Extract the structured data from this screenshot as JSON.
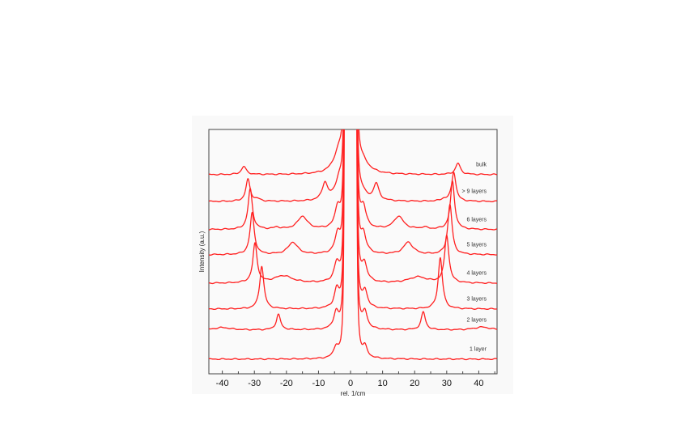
{
  "chart_data": {
    "type": "line",
    "title": "",
    "xlabel": "rel. 1/cm",
    "ylabel": "Intensity (a.u.)",
    "xlim": [
      -44.2,
      45.7
    ],
    "ylim": [
      0,
      100
    ],
    "xticks": [
      -40,
      -30,
      -20,
      -10,
      0,
      10,
      20,
      30,
      40
    ],
    "xtick_labels": [
      "-40",
      "-30",
      "-20",
      "-10",
      "0",
      "10",
      "20",
      "30",
      "40"
    ],
    "minor_xtick_step": 5,
    "grid": false,
    "legend": "none (series labelled at right)",
    "line_color": "#ff2020",
    "note_peak_format": "peaks as [center rel. 1/cm, height a.u., half-width rel. 1/cm], offset = vertical baseline a.u.",
    "series": [
      {
        "name": "1 layer",
        "offset": 6,
        "peaks": [
          [
            -4.5,
            4.3,
            0.9
          ],
          [
            4.5,
            4.3,
            0.9
          ]
        ]
      },
      {
        "name": "2 layers",
        "offset": 17.9,
        "peaks": [
          [
            -40,
            1,
            3
          ],
          [
            -22.5,
            6.3,
            0.8
          ],
          [
            -4.5,
            6.6,
            0.9
          ],
          [
            4.5,
            6.6,
            0.9
          ],
          [
            22.7,
            7.3,
            0.8
          ],
          [
            41,
            1.2,
            3
          ]
        ]
      },
      {
        "name": "3 layers",
        "offset": 26.5,
        "peaks": [
          [
            -27.7,
            17.5,
            0.8
          ],
          [
            -4.3,
            7.3,
            0.9
          ],
          [
            4.5,
            6.8,
            0.9
          ],
          [
            28,
            21,
            0.8
          ]
        ]
      },
      {
        "name": "4 layers",
        "offset": 37,
        "peaks": [
          [
            -29.8,
            16,
            0.8
          ],
          [
            -21,
            3,
            3.5
          ],
          [
            -4.3,
            7.3,
            1
          ],
          [
            4.3,
            7.3,
            1
          ],
          [
            21,
            2.5,
            3.5
          ],
          [
            30,
            19.5,
            0.8
          ]
        ]
      },
      {
        "name": "5 layers",
        "offset": 48.7,
        "peaks": [
          [
            -30.7,
            17,
            0.8
          ],
          [
            -18,
            5,
            1.8
          ],
          [
            -4,
            7.6,
            1
          ],
          [
            4,
            7.6,
            1
          ],
          [
            18,
            5,
            1.8
          ],
          [
            31,
            20.5,
            0.8
          ]
        ]
      },
      {
        "name": "6 layers",
        "offset": 59,
        "peaks": [
          [
            -31.3,
            16.5,
            0.8
          ],
          [
            -23,
            0.8,
            1
          ],
          [
            -15,
            5.3,
            1.8
          ],
          [
            -4,
            8.3,
            1
          ],
          [
            4,
            8.3,
            1
          ],
          [
            15,
            5.3,
            1.8
          ],
          [
            23,
            0.8,
            1
          ],
          [
            31.8,
            19.5,
            0.8
          ]
        ]
      },
      {
        "name": "> 9 layers",
        "offset": 70.5,
        "peaks": [
          [
            -32,
            9,
            0.8
          ],
          [
            -29,
            0.8,
            1
          ],
          [
            -8,
            7,
            1
          ],
          [
            -3.5,
            8,
            1.5
          ],
          [
            3.5,
            3,
            1.5
          ],
          [
            8,
            6.8,
            1
          ],
          [
            29,
            0.8,
            1
          ],
          [
            32.2,
            12,
            0.8
          ]
        ]
      },
      {
        "name": "bulk",
        "offset": 81.5,
        "peaks": [
          [
            -33.3,
            3.3,
            0.9
          ],
          [
            -3.5,
            9,
            2
          ],
          [
            3.5,
            5,
            2.5
          ],
          [
            33.5,
            4.6,
            0.9
          ]
        ]
      }
    ]
  }
}
